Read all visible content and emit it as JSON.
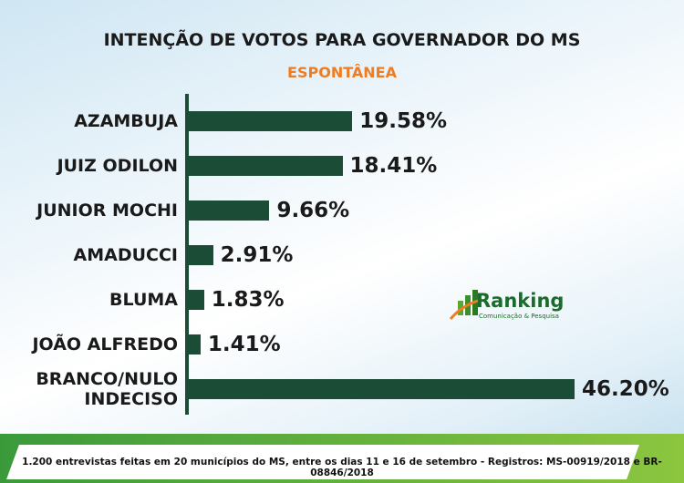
{
  "chart_data": {
    "type": "bar",
    "title": "INTENÇÃO DE VOTOS PARA GOVERNADOR DO MS",
    "subtitle": "ESPONTÂNEA",
    "categories": [
      "AZAMBUJA",
      "JUIZ ODILON",
      "JUNIOR MOCHI",
      "AMADUCCI",
      "BLUMA",
      "JOÃO ALFREDO",
      "BRANCO/NULO\nINDECISO"
    ],
    "values": [
      19.58,
      18.41,
      9.66,
      2.91,
      1.83,
      1.41,
      46.2
    ],
    "value_labels": [
      "19.58%",
      "18.41%",
      "9.66%",
      "2.91%",
      "1.83%",
      "1.41%",
      "46.20%"
    ],
    "color": "#1b4d36",
    "orientation": "horizontal",
    "logo": {
      "name": "Ranking",
      "tagline": "Comunicação & Pesquisa"
    },
    "footnote": "1.200 entrevistas feitas em 20 municípios do MS, entre os dias 11 e 16 de setembro - Registros:  MS-00919/2018 e BR-08846/2018"
  }
}
